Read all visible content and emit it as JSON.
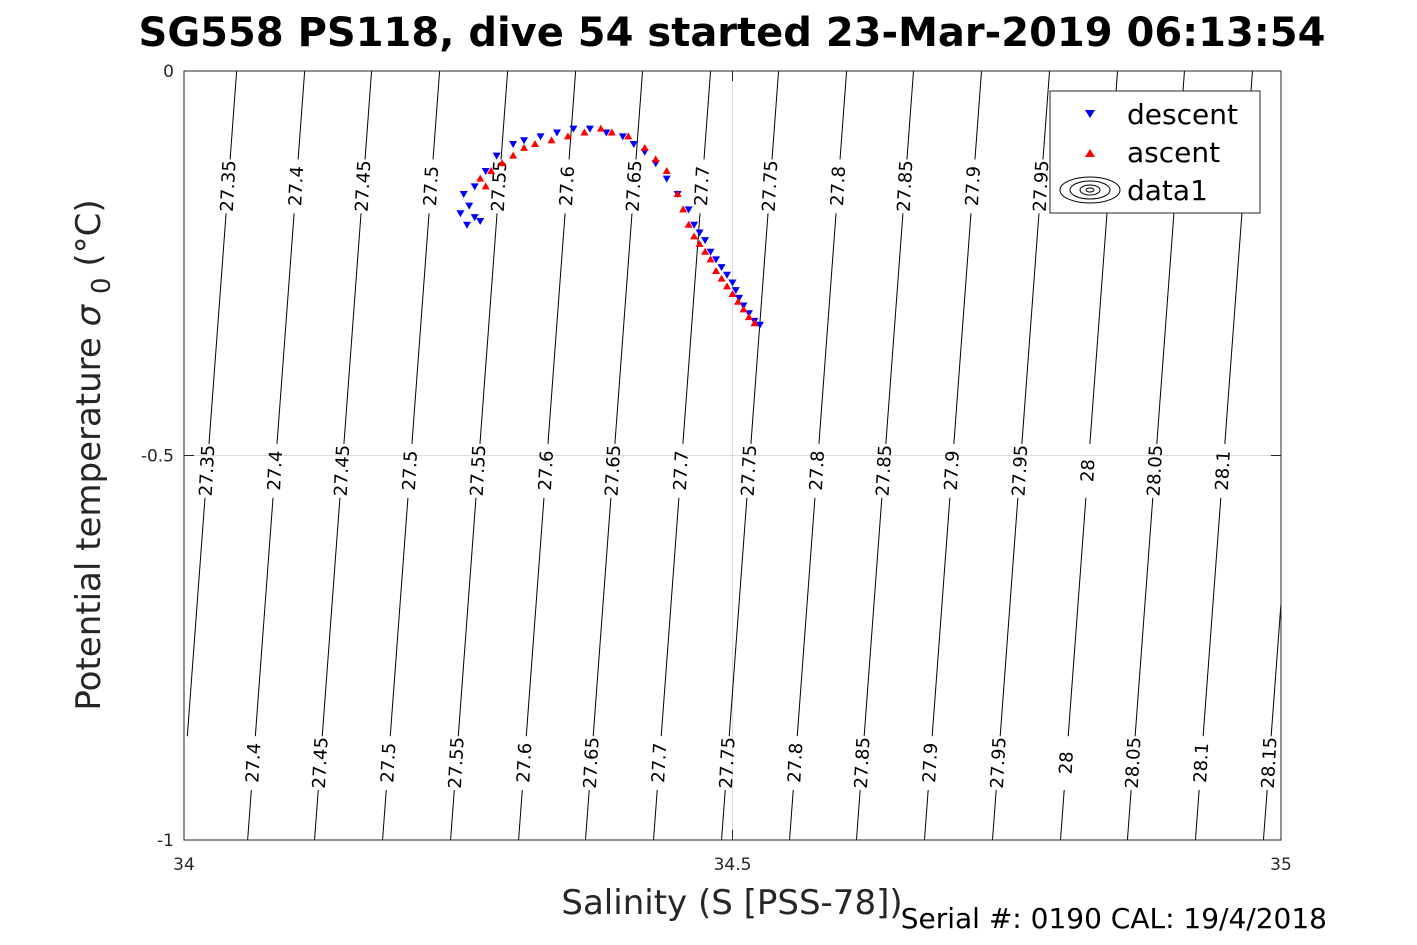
{
  "chart_data": {
    "type": "scatter",
    "title": "SG558 PS118, dive 54 started 23-Mar-2019 06:13:54",
    "xlabel": "Salinity (S [PSS-78])",
    "ylabel_main": "Potential temperature ",
    "ylabel_sigma": "σ",
    "ylabel_sub": "0",
    "ylabel_unit": " (°C)",
    "xlim": [
      34,
      35
    ],
    "ylim": [
      -1,
      0
    ],
    "xticks": [
      34,
      34.5,
      35
    ],
    "xtick_labels": [
      "34",
      "34.5",
      "35"
    ],
    "yticks": [
      0,
      -0.5,
      -1
    ],
    "ytick_labels": [
      "0",
      "-0.5",
      "-1"
    ],
    "grid": true,
    "legend_position": "top-right",
    "legend": [
      "descent",
      "ascent",
      "data1"
    ],
    "series": [
      {
        "name": "descent",
        "marker": "triangle-down",
        "color": "#0000ff",
        "points": [
          [
            34.255,
            -0.16
          ],
          [
            34.26,
            -0.175
          ],
          [
            34.252,
            -0.185
          ],
          [
            34.258,
            -0.2
          ],
          [
            34.265,
            -0.19
          ],
          [
            34.27,
            -0.195
          ],
          [
            34.265,
            -0.15
          ],
          [
            34.275,
            -0.13
          ],
          [
            34.285,
            -0.11
          ],
          [
            34.3,
            -0.095
          ],
          [
            34.31,
            -0.09
          ],
          [
            34.325,
            -0.085
          ],
          [
            34.34,
            -0.08
          ],
          [
            34.355,
            -0.075
          ],
          [
            34.37,
            -0.075
          ],
          [
            34.385,
            -0.08
          ],
          [
            34.4,
            -0.085
          ],
          [
            34.41,
            -0.095
          ],
          [
            34.42,
            -0.105
          ],
          [
            34.43,
            -0.12
          ],
          [
            34.44,
            -0.14
          ],
          [
            34.45,
            -0.16
          ],
          [
            34.46,
            -0.18
          ],
          [
            34.465,
            -0.2
          ],
          [
            34.47,
            -0.21
          ],
          [
            34.475,
            -0.22
          ],
          [
            34.48,
            -0.235
          ],
          [
            34.485,
            -0.245
          ],
          [
            34.49,
            -0.255
          ],
          [
            34.495,
            -0.265
          ],
          [
            34.5,
            -0.275
          ],
          [
            34.503,
            -0.285
          ],
          [
            34.506,
            -0.295
          ],
          [
            34.51,
            -0.305
          ],
          [
            34.515,
            -0.315
          ],
          [
            34.52,
            -0.325
          ],
          [
            34.525,
            -0.33
          ]
        ]
      },
      {
        "name": "ascent",
        "marker": "triangle-up",
        "color": "#ff0000",
        "points": [
          [
            34.27,
            -0.14
          ],
          [
            34.275,
            -0.15
          ],
          [
            34.28,
            -0.13
          ],
          [
            34.29,
            -0.12
          ],
          [
            34.3,
            -0.11
          ],
          [
            34.31,
            -0.1
          ],
          [
            34.32,
            -0.095
          ],
          [
            34.335,
            -0.09
          ],
          [
            34.35,
            -0.085
          ],
          [
            34.365,
            -0.08
          ],
          [
            34.38,
            -0.075
          ],
          [
            34.39,
            -0.08
          ],
          [
            34.405,
            -0.085
          ],
          [
            34.42,
            -0.1
          ],
          [
            34.43,
            -0.115
          ],
          [
            34.44,
            -0.13
          ],
          [
            34.45,
            -0.16
          ],
          [
            34.455,
            -0.18
          ],
          [
            34.46,
            -0.2
          ],
          [
            34.465,
            -0.215
          ],
          [
            34.47,
            -0.225
          ],
          [
            34.475,
            -0.235
          ],
          [
            34.48,
            -0.245
          ],
          [
            34.485,
            -0.26
          ],
          [
            34.49,
            -0.27
          ],
          [
            34.495,
            -0.28
          ],
          [
            34.5,
            -0.29
          ],
          [
            34.505,
            -0.3
          ],
          [
            34.51,
            -0.31
          ],
          [
            34.515,
            -0.32
          ],
          [
            34.52,
            -0.328
          ]
        ]
      }
    ],
    "contours": [
      {
        "label": "27.35",
        "s": 34.048
      },
      {
        "label": "27.4",
        "s": 34.11
      },
      {
        "label": "27.45",
        "s": 34.171
      },
      {
        "label": "27.5",
        "s": 34.233
      },
      {
        "label": "27.55",
        "s": 34.295
      },
      {
        "label": "27.6",
        "s": 34.357
      },
      {
        "label": "27.65",
        "s": 34.418
      },
      {
        "label": "27.7",
        "s": 34.48
      },
      {
        "label": "27.75",
        "s": 34.542
      },
      {
        "label": "27.8",
        "s": 34.604
      },
      {
        "label": "27.85",
        "s": 34.665
      },
      {
        "label": "27.9",
        "s": 34.727
      },
      {
        "label": "27.95",
        "s": 34.789
      },
      {
        "label": "28",
        "s": 34.851
      },
      {
        "label": "28.05",
        "s": 34.912
      },
      {
        "label": "28.1",
        "s": 34.974
      },
      {
        "label": "28.15",
        "s": 35.036
      }
    ]
  },
  "footer": "Serial #: 0190  CAL: 19/4/2018"
}
